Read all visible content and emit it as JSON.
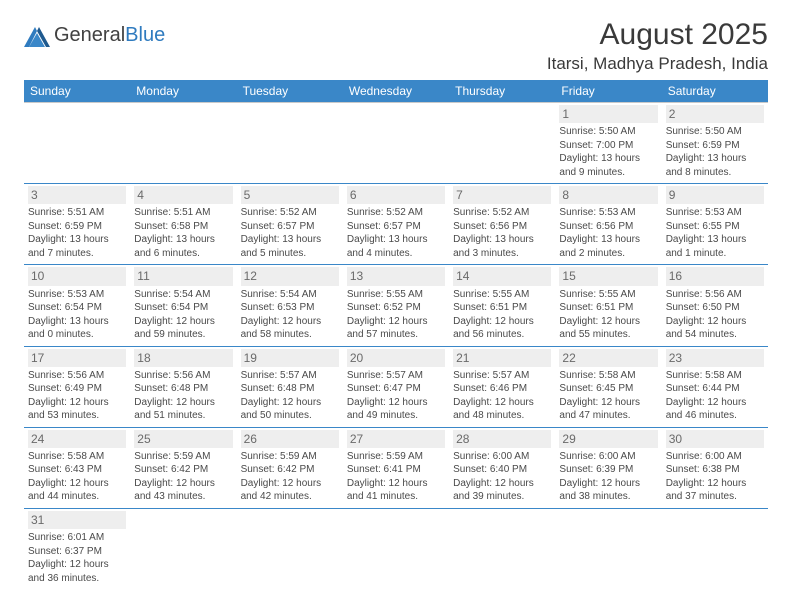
{
  "logo": {
    "text1": "General",
    "text2": "Blue"
  },
  "title": "August 2025",
  "location": "Itarsi, Madhya Pradesh, India",
  "headers": [
    "Sunday",
    "Monday",
    "Tuesday",
    "Wednesday",
    "Thursday",
    "Friday",
    "Saturday"
  ],
  "colors": {
    "header_bg": "#3a87c8",
    "header_text": "#ffffff",
    "border": "#3a87c8",
    "daynum_bg": "#eeeeee",
    "text": "#4a4a4a",
    "logo_blue": "#2f7bbf"
  },
  "weeks": [
    [
      null,
      null,
      null,
      null,
      null,
      {
        "n": "1",
        "sr": "Sunrise: 5:50 AM",
        "ss": "Sunset: 7:00 PM",
        "dl": "Daylight: 13 hours and 9 minutes."
      },
      {
        "n": "2",
        "sr": "Sunrise: 5:50 AM",
        "ss": "Sunset: 6:59 PM",
        "dl": "Daylight: 13 hours and 8 minutes."
      }
    ],
    [
      {
        "n": "3",
        "sr": "Sunrise: 5:51 AM",
        "ss": "Sunset: 6:59 PM",
        "dl": "Daylight: 13 hours and 7 minutes."
      },
      {
        "n": "4",
        "sr": "Sunrise: 5:51 AM",
        "ss": "Sunset: 6:58 PM",
        "dl": "Daylight: 13 hours and 6 minutes."
      },
      {
        "n": "5",
        "sr": "Sunrise: 5:52 AM",
        "ss": "Sunset: 6:57 PM",
        "dl": "Daylight: 13 hours and 5 minutes."
      },
      {
        "n": "6",
        "sr": "Sunrise: 5:52 AM",
        "ss": "Sunset: 6:57 PM",
        "dl": "Daylight: 13 hours and 4 minutes."
      },
      {
        "n": "7",
        "sr": "Sunrise: 5:52 AM",
        "ss": "Sunset: 6:56 PM",
        "dl": "Daylight: 13 hours and 3 minutes."
      },
      {
        "n": "8",
        "sr": "Sunrise: 5:53 AM",
        "ss": "Sunset: 6:56 PM",
        "dl": "Daylight: 13 hours and 2 minutes."
      },
      {
        "n": "9",
        "sr": "Sunrise: 5:53 AM",
        "ss": "Sunset: 6:55 PM",
        "dl": "Daylight: 13 hours and 1 minute."
      }
    ],
    [
      {
        "n": "10",
        "sr": "Sunrise: 5:53 AM",
        "ss": "Sunset: 6:54 PM",
        "dl": "Daylight: 13 hours and 0 minutes."
      },
      {
        "n": "11",
        "sr": "Sunrise: 5:54 AM",
        "ss": "Sunset: 6:54 PM",
        "dl": "Daylight: 12 hours and 59 minutes."
      },
      {
        "n": "12",
        "sr": "Sunrise: 5:54 AM",
        "ss": "Sunset: 6:53 PM",
        "dl": "Daylight: 12 hours and 58 minutes."
      },
      {
        "n": "13",
        "sr": "Sunrise: 5:55 AM",
        "ss": "Sunset: 6:52 PM",
        "dl": "Daylight: 12 hours and 57 minutes."
      },
      {
        "n": "14",
        "sr": "Sunrise: 5:55 AM",
        "ss": "Sunset: 6:51 PM",
        "dl": "Daylight: 12 hours and 56 minutes."
      },
      {
        "n": "15",
        "sr": "Sunrise: 5:55 AM",
        "ss": "Sunset: 6:51 PM",
        "dl": "Daylight: 12 hours and 55 minutes."
      },
      {
        "n": "16",
        "sr": "Sunrise: 5:56 AM",
        "ss": "Sunset: 6:50 PM",
        "dl": "Daylight: 12 hours and 54 minutes."
      }
    ],
    [
      {
        "n": "17",
        "sr": "Sunrise: 5:56 AM",
        "ss": "Sunset: 6:49 PM",
        "dl": "Daylight: 12 hours and 53 minutes."
      },
      {
        "n": "18",
        "sr": "Sunrise: 5:56 AM",
        "ss": "Sunset: 6:48 PM",
        "dl": "Daylight: 12 hours and 51 minutes."
      },
      {
        "n": "19",
        "sr": "Sunrise: 5:57 AM",
        "ss": "Sunset: 6:48 PM",
        "dl": "Daylight: 12 hours and 50 minutes."
      },
      {
        "n": "20",
        "sr": "Sunrise: 5:57 AM",
        "ss": "Sunset: 6:47 PM",
        "dl": "Daylight: 12 hours and 49 minutes."
      },
      {
        "n": "21",
        "sr": "Sunrise: 5:57 AM",
        "ss": "Sunset: 6:46 PM",
        "dl": "Daylight: 12 hours and 48 minutes."
      },
      {
        "n": "22",
        "sr": "Sunrise: 5:58 AM",
        "ss": "Sunset: 6:45 PM",
        "dl": "Daylight: 12 hours and 47 minutes."
      },
      {
        "n": "23",
        "sr": "Sunrise: 5:58 AM",
        "ss": "Sunset: 6:44 PM",
        "dl": "Daylight: 12 hours and 46 minutes."
      }
    ],
    [
      {
        "n": "24",
        "sr": "Sunrise: 5:58 AM",
        "ss": "Sunset: 6:43 PM",
        "dl": "Daylight: 12 hours and 44 minutes."
      },
      {
        "n": "25",
        "sr": "Sunrise: 5:59 AM",
        "ss": "Sunset: 6:42 PM",
        "dl": "Daylight: 12 hours and 43 minutes."
      },
      {
        "n": "26",
        "sr": "Sunrise: 5:59 AM",
        "ss": "Sunset: 6:42 PM",
        "dl": "Daylight: 12 hours and 42 minutes."
      },
      {
        "n": "27",
        "sr": "Sunrise: 5:59 AM",
        "ss": "Sunset: 6:41 PM",
        "dl": "Daylight: 12 hours and 41 minutes."
      },
      {
        "n": "28",
        "sr": "Sunrise: 6:00 AM",
        "ss": "Sunset: 6:40 PM",
        "dl": "Daylight: 12 hours and 39 minutes."
      },
      {
        "n": "29",
        "sr": "Sunrise: 6:00 AM",
        "ss": "Sunset: 6:39 PM",
        "dl": "Daylight: 12 hours and 38 minutes."
      },
      {
        "n": "30",
        "sr": "Sunrise: 6:00 AM",
        "ss": "Sunset: 6:38 PM",
        "dl": "Daylight: 12 hours and 37 minutes."
      }
    ],
    [
      {
        "n": "31",
        "sr": "Sunrise: 6:01 AM",
        "ss": "Sunset: 6:37 PM",
        "dl": "Daylight: 12 hours and 36 minutes."
      },
      null,
      null,
      null,
      null,
      null,
      null
    ]
  ]
}
